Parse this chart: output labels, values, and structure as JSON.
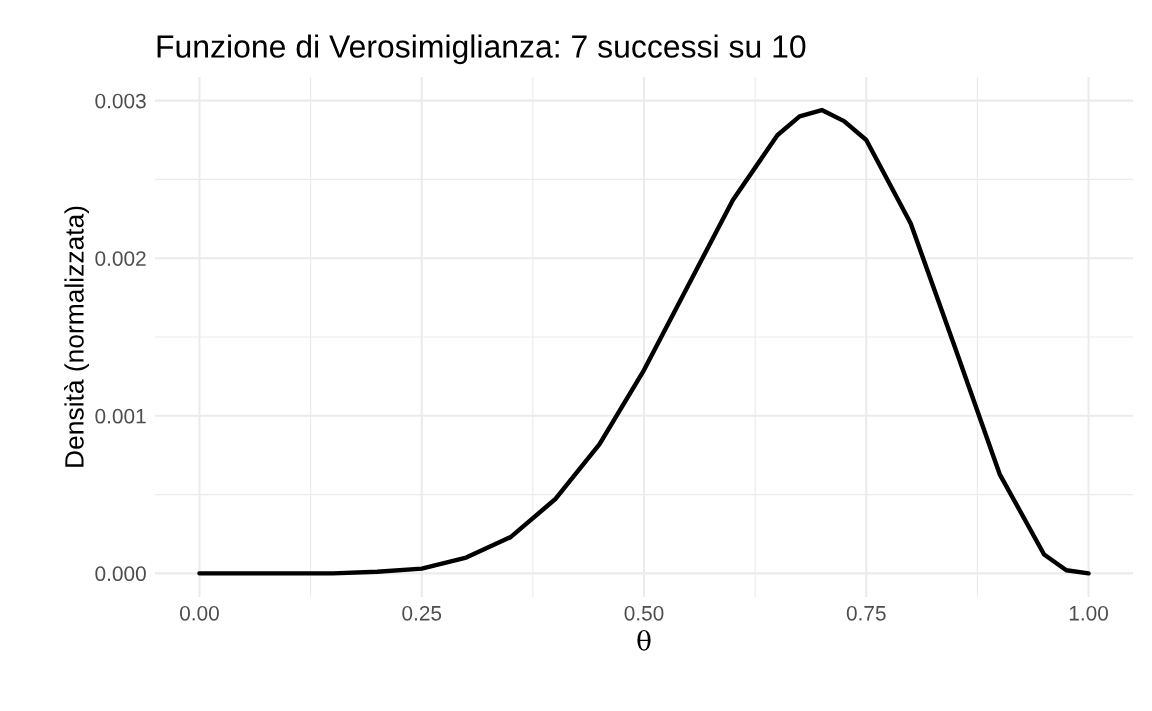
{
  "chart_data": {
    "type": "line",
    "title": "Funzione di Verosimiglianza: 7 successi su 10",
    "xlabel": "θ",
    "ylabel": "Densità (normalizzata)",
    "x": [
      0,
      0.05,
      0.1,
      0.15,
      0.2,
      0.25,
      0.3,
      0.35,
      0.4,
      0.45,
      0.5,
      0.55,
      0.6,
      0.65,
      0.675,
      0.7,
      0.725,
      0.75,
      0.8,
      0.85,
      0.9,
      0.95,
      0.975,
      1
    ],
    "series": [
      {
        "color": "#000000",
        "values": [
          0,
          0,
          0,
          0,
          1e-05,
          3e-05,
          0.0001,
          0.00023,
          0.00047,
          0.00082,
          0.00129,
          0.00183,
          0.00237,
          0.00278,
          0.0029,
          0.00294,
          0.00287,
          0.00275,
          0.00222,
          0.00143,
          0.00063,
          0.00012,
          2e-05,
          0
        ]
      }
    ],
    "xlim": [
      -0.05,
      1.05
    ],
    "ylim": [
      -0.00015,
      0.00315
    ],
    "xticks": [
      {
        "value": 0,
        "label": "0.00"
      },
      {
        "value": 0.125,
        "label": null
      },
      {
        "value": 0.25,
        "label": "0.25"
      },
      {
        "value": 0.375,
        "label": null
      },
      {
        "value": 0.5,
        "label": "0.50"
      },
      {
        "value": 0.625,
        "label": null
      },
      {
        "value": 0.75,
        "label": "0.75"
      },
      {
        "value": 0.875,
        "label": null
      },
      {
        "value": 1,
        "label": "1.00"
      }
    ],
    "yticks": [
      {
        "value": 0,
        "label": "0.000"
      },
      {
        "value": 0.0005,
        "label": null
      },
      {
        "value": 0.001,
        "label": "0.001"
      },
      {
        "value": 0.0015,
        "label": null
      },
      {
        "value": 0.002,
        "label": "0.002"
      },
      {
        "value": 0.0025,
        "label": null
      },
      {
        "value": 0.003,
        "label": "0.003"
      }
    ],
    "grid": true,
    "marker": "none",
    "line_style": "solid",
    "legend": false
  }
}
